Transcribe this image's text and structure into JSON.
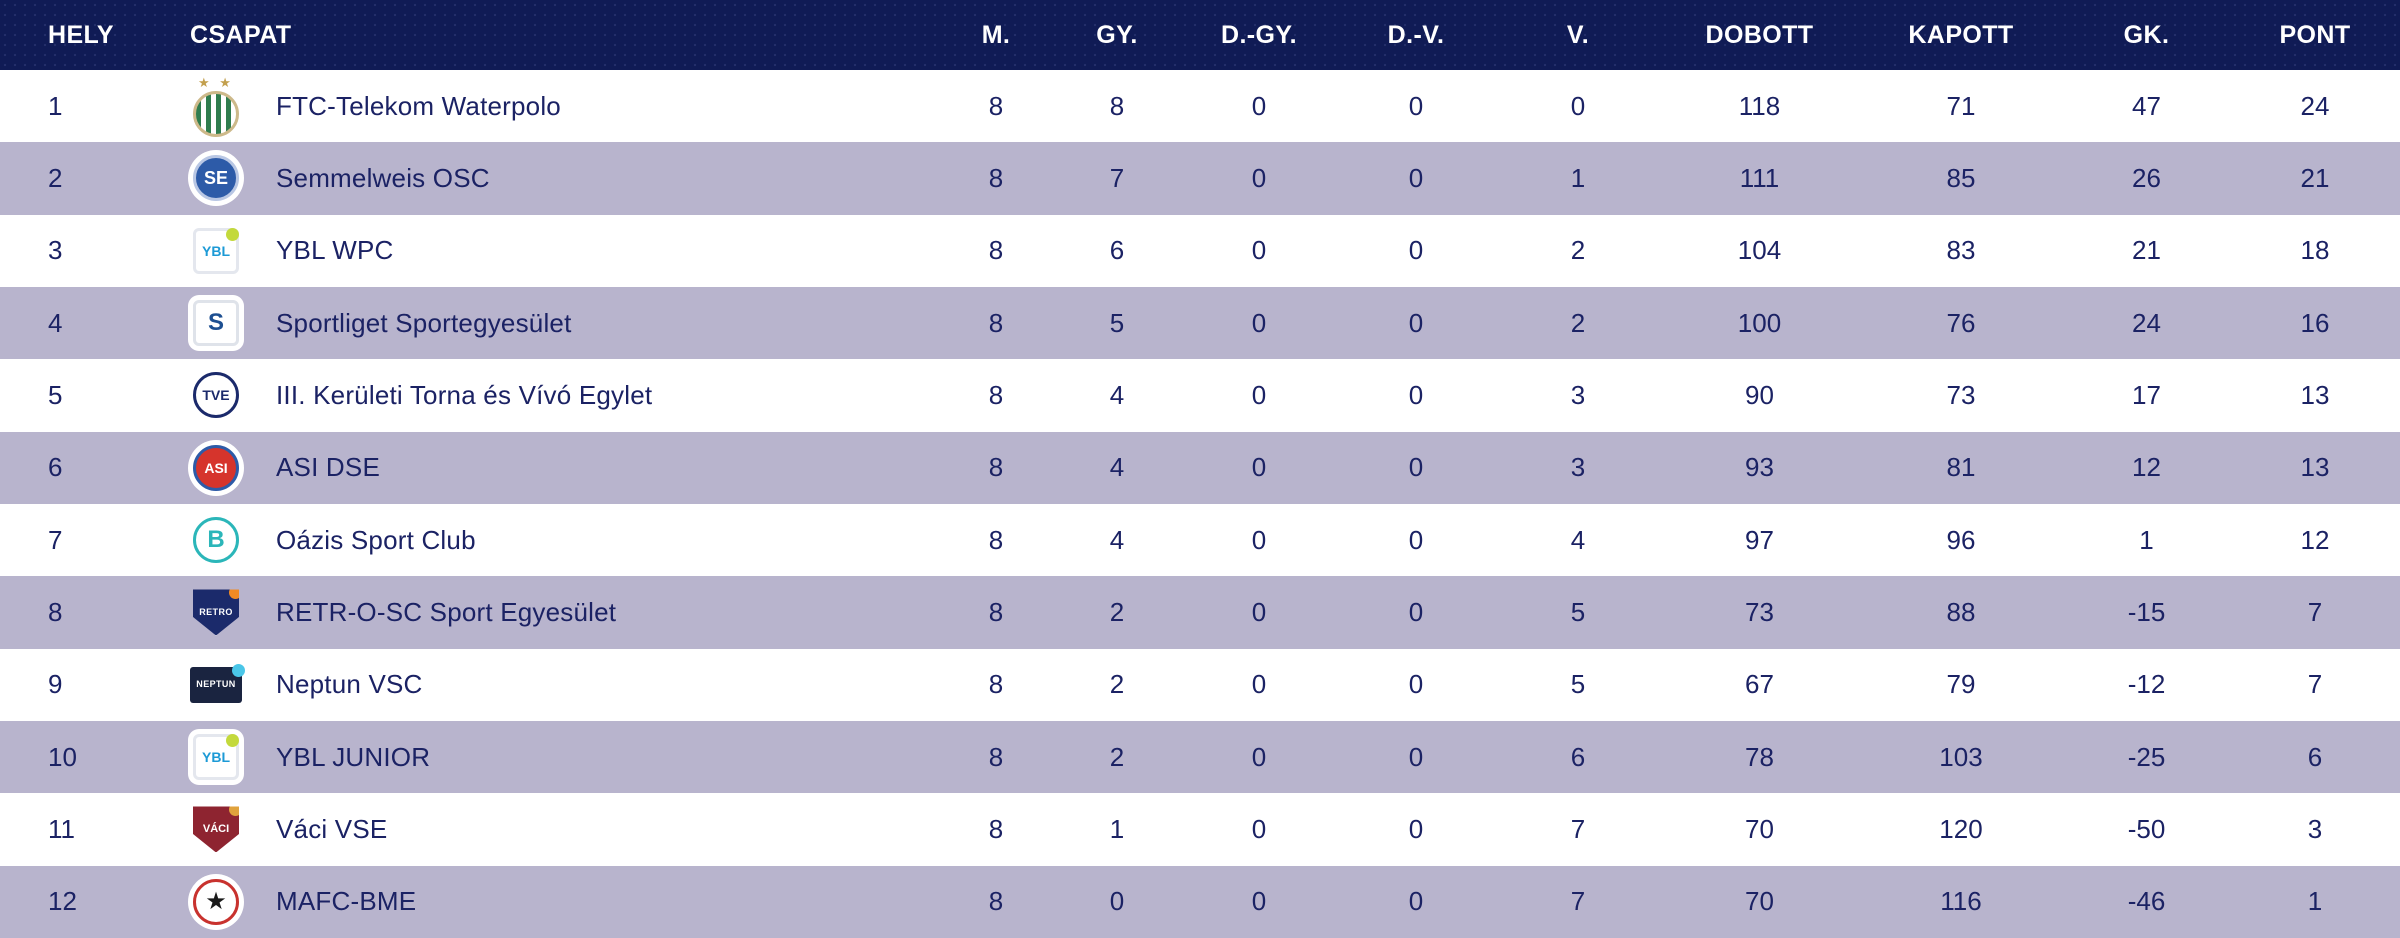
{
  "colors": {
    "header_bg": "#101b55",
    "header_text": "#ffffff",
    "row_bg": "#ffffff",
    "row_alt_bg": "#b8b4cd",
    "body_text": "#1b2264"
  },
  "table": {
    "columns": [
      {
        "key": "hely",
        "label": "HELY"
      },
      {
        "key": "name",
        "label": "CSAPAT"
      },
      {
        "key": "m",
        "label": "M."
      },
      {
        "key": "gy",
        "label": "GY."
      },
      {
        "key": "dgy",
        "label": "D.-GY."
      },
      {
        "key": "dv",
        "label": "D.-V."
      },
      {
        "key": "v",
        "label": "V."
      },
      {
        "key": "dobott",
        "label": "DOBOTT"
      },
      {
        "key": "kapott",
        "label": "KAPOTT"
      },
      {
        "key": "gk",
        "label": "GK."
      },
      {
        "key": "pont",
        "label": "PONT"
      }
    ],
    "teams": [
      {
        "hely": "1",
        "name": "FTC-Telekom Waterpolo",
        "m": "8",
        "gy": "8",
        "dgy": "0",
        "dv": "0",
        "v": "0",
        "dobott": "118",
        "kapott": "71",
        "gk": "47",
        "pont": "24",
        "logo": {
          "name": "ftc-telekom-crest",
          "shape": "circle",
          "bg": "#ffffff",
          "stripes": "#2f7d4e",
          "ring": "#cdb98a",
          "stars": "★ ★",
          "stars_color": "#c3a04e"
        }
      },
      {
        "hely": "2",
        "name": "Semmelweis OSC",
        "m": "8",
        "gy": "7",
        "dgy": "0",
        "dv": "0",
        "v": "1",
        "dobott": "111",
        "kapott": "85",
        "gk": "26",
        "pont": "21",
        "logo": {
          "name": "semmelweis-osc-crest",
          "shape": "circle",
          "bg": "#2d5ba8",
          "ring": "#b9c7e4",
          "text": "SE",
          "text_color": "#ffffff",
          "box": true
        }
      },
      {
        "hely": "3",
        "name": "YBL WPC",
        "m": "8",
        "gy": "6",
        "dgy": "0",
        "dv": "0",
        "v": "2",
        "dobott": "104",
        "kapott": "83",
        "gk": "21",
        "pont": "18",
        "logo": {
          "name": "ybl-wpc-crest",
          "shape": "square",
          "bg": "#ffffff",
          "ring": "#e4e7ee",
          "text": "YBL",
          "text_color": "#1c9ad6",
          "dot": "#c3d93c"
        }
      },
      {
        "hely": "4",
        "name": "Sportliget Sportegyesület",
        "m": "8",
        "gy": "5",
        "dgy": "0",
        "dv": "0",
        "v": "2",
        "dobott": "100",
        "kapott": "76",
        "gk": "24",
        "pont": "16",
        "logo": {
          "name": "sportliget-crest",
          "shape": "square",
          "bg": "#ffffff",
          "ring": "#dfe3ea",
          "text": "S",
          "text_color": "#1d4f91",
          "box": true
        }
      },
      {
        "hely": "5",
        "name": "III. Kerületi Torna és Vívó Egylet",
        "m": "8",
        "gy": "4",
        "dgy": "0",
        "dv": "0",
        "v": "3",
        "dobott": "90",
        "kapott": "73",
        "gk": "17",
        "pont": "13",
        "logo": {
          "name": "iii-keruleti-tve-crest",
          "shape": "circle",
          "bg": "#ffffff",
          "ring": "#1b2a6b",
          "text": "TVE",
          "text_color": "#1b2a6b"
        }
      },
      {
        "hely": "6",
        "name": "ASI DSE",
        "m": "8",
        "gy": "4",
        "dgy": "0",
        "dv": "0",
        "v": "3",
        "dobott": "93",
        "kapott": "81",
        "gk": "12",
        "pont": "13",
        "logo": {
          "name": "asi-dse-crest",
          "shape": "circle",
          "bg": "#d6342c",
          "ring": "#2d5ba8",
          "text": "ASI",
          "text_color": "#ffffff",
          "box": true
        }
      },
      {
        "hely": "7",
        "name": "Oázis Sport Club",
        "m": "8",
        "gy": "4",
        "dgy": "0",
        "dv": "0",
        "v": "4",
        "dobott": "97",
        "kapott": "96",
        "gk": "1",
        "pont": "12",
        "logo": {
          "name": "oazis-sport-club-crest",
          "shape": "circle",
          "bg": "#ffffff",
          "ring": "#2bb6b9",
          "text": "B",
          "text_color": "#2bb6b9"
        }
      },
      {
        "hely": "8",
        "name": "RETR-O-SC Sport Egyesület",
        "m": "8",
        "gy": "2",
        "dgy": "0",
        "dv": "0",
        "v": "5",
        "dobott": "73",
        "kapott": "88",
        "gk": "-15",
        "pont": "7",
        "logo": {
          "name": "retr-o-sc-crest",
          "shape": "shield",
          "bg": "#1b2a6b",
          "text": "RETRO",
          "text_color": "#ffffff",
          "dot": "#f08a24",
          "box": true
        }
      },
      {
        "hely": "9",
        "name": "Neptun VSC",
        "m": "8",
        "gy": "2",
        "dgy": "0",
        "dv": "0",
        "v": "5",
        "dobott": "67",
        "kapott": "79",
        "gk": "-12",
        "pont": "7",
        "logo": {
          "name": "neptun-vsc-crest",
          "shape": "rect",
          "bg": "#1a2440",
          "text": "NEPTUN",
          "text_color": "#ffffff",
          "dot": "#4ac6e8"
        }
      },
      {
        "hely": "10",
        "name": "YBL JUNIOR",
        "m": "8",
        "gy": "2",
        "dgy": "0",
        "dv": "0",
        "v": "6",
        "dobott": "78",
        "kapott": "103",
        "gk": "-25",
        "pont": "6",
        "logo": {
          "name": "ybl-junior-crest",
          "shape": "square",
          "bg": "#ffffff",
          "ring": "#e4e7ee",
          "text": "YBL",
          "text_color": "#1c9ad6",
          "dot": "#c3d93c",
          "box": true
        }
      },
      {
        "hely": "11",
        "name": "Váci VSE",
        "m": "8",
        "gy": "1",
        "dgy": "0",
        "dv": "0",
        "v": "7",
        "dobott": "70",
        "kapott": "120",
        "gk": "-50",
        "pont": "3",
        "logo": {
          "name": "vaci-vse-crest",
          "shape": "shield",
          "bg": "#8e2430",
          "text": "VÁCI",
          "text_color": "#ffffff",
          "dot": "#e0a23c"
        }
      },
      {
        "hely": "12",
        "name": "MAFC-BME",
        "m": "8",
        "gy": "0",
        "dgy": "0",
        "dv": "0",
        "v": "7",
        "dobott": "70",
        "kapott": "116",
        "gk": "-46",
        "pont": "1",
        "logo": {
          "name": "mafc-bme-crest",
          "shape": "circle",
          "bg": "#ffffff",
          "ring": "#c8322e",
          "text": "★",
          "text_color": "#1a1a1a",
          "box": true
        }
      }
    ]
  }
}
